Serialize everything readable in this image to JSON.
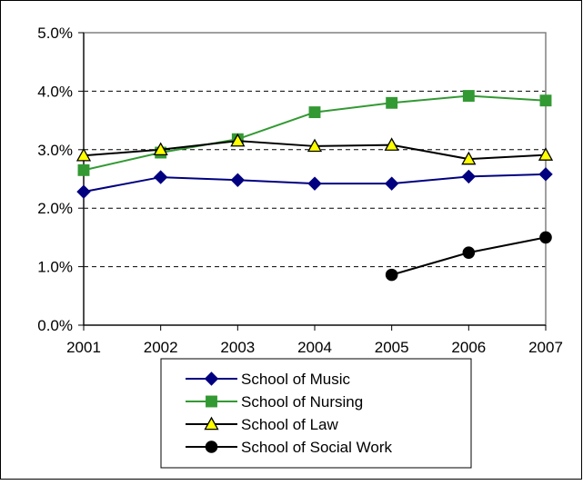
{
  "chart_data": {
    "type": "line",
    "title": "",
    "xlabel": "",
    "ylabel": "",
    "categories": [
      "2001",
      "2002",
      "2003",
      "2004",
      "2005",
      "2006",
      "2007"
    ],
    "x_tick_labels": [
      "2001",
      "2002",
      "2003",
      "2004",
      "2005",
      "2006",
      "2007"
    ],
    "y_tick_labels": [
      "0.0%",
      "1.0%",
      "2.0%",
      "3.0%",
      "4.0%",
      "5.0%"
    ],
    "ylim": [
      0,
      5
    ],
    "y_unit": "%",
    "grid": "horizontal dashed",
    "legend_position": "bottom",
    "series": [
      {
        "name": "School of Music",
        "values": [
          2.28,
          2.53,
          2.48,
          2.42,
          2.42,
          2.54,
          2.58
        ],
        "color": "#000080",
        "marker": "diamond",
        "marker_fill": "#000080"
      },
      {
        "name": "School of Nursing",
        "values": [
          2.65,
          2.95,
          3.18,
          3.64,
          3.8,
          3.92,
          3.84
        ],
        "color": "#339933",
        "marker": "square",
        "marker_fill": "#339933"
      },
      {
        "name": "School of Law",
        "values": [
          2.9,
          3.0,
          3.15,
          3.06,
          3.08,
          2.84,
          2.91
        ],
        "color": "#000000",
        "marker": "triangle",
        "marker_fill": "#ffff00"
      },
      {
        "name": "School of Social Work",
        "values": [
          null,
          null,
          null,
          null,
          0.86,
          1.24,
          1.5
        ],
        "color": "#000000",
        "marker": "circle",
        "marker_fill": "#000000"
      }
    ]
  }
}
